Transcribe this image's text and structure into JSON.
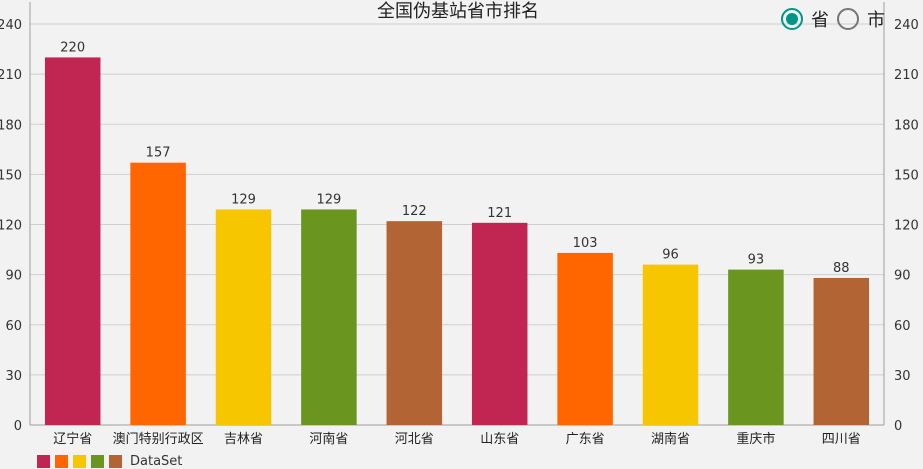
{
  "chart_data": {
    "type": "bar",
    "title": "全国伪基站省市排名",
    "categories": [
      "辽宁省",
      "澳门特别行政区",
      "吉林省",
      "河南省",
      "河北省",
      "山东省",
      "广东省",
      "湖南省",
      "重庆市",
      "四川省"
    ],
    "values": [
      220,
      157,
      129,
      129,
      122,
      121,
      103,
      96,
      93,
      88
    ],
    "ylim": [
      0,
      240
    ],
    "yticks": [
      0,
      30,
      60,
      90,
      120,
      150,
      180,
      210,
      240
    ],
    "colors": [
      "#c12552",
      "#ff6600",
      "#f6c600",
      "#6a961f",
      "#b36435"
    ],
    "legend": {
      "label": "DataSet",
      "position": "bottom-left"
    },
    "grid": true
  },
  "toggle": {
    "options": [
      {
        "label": "省",
        "checked": true
      },
      {
        "label": "市",
        "checked": false
      }
    ]
  }
}
